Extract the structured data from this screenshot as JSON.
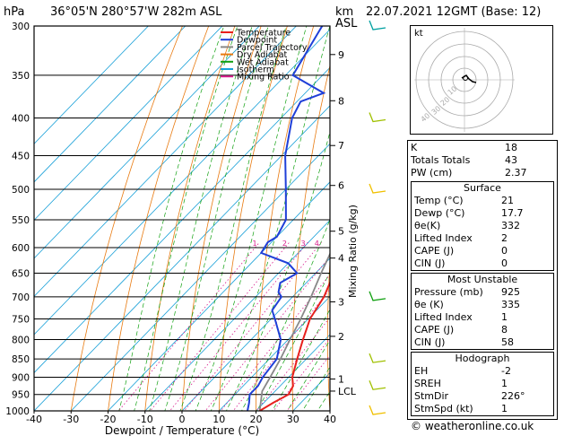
{
  "header": {
    "hpa_label": "hPa",
    "location": "36°05'N  280°57'W  282m  ASL",
    "km_label": "km",
    "asl_label": "ASL",
    "datetime": "22.07.2021  12GMT  (Base: 12)"
  },
  "legend": [
    {
      "label": "Temperature",
      "color": "#e8201c"
    },
    {
      "label": "Dewpoint",
      "color": "#1f3fd8"
    },
    {
      "label": "Parcel Trajectory",
      "color": "#888888"
    },
    {
      "label": "Dry Adiabat",
      "color": "#e87a10"
    },
    {
      "label": "Wet Adiabat",
      "color": "#10a010"
    },
    {
      "label": "Isotherm",
      "color": "#18a0d8"
    },
    {
      "label": "Mixing Ratio",
      "color": "#d81c8c"
    }
  ],
  "chart_data": {
    "type": "line",
    "title": "Skew-T log-P sounding",
    "xlabel": "Dewpoint / Temperature (°C)",
    "ylabel": "hPa",
    "xlim": [
      -40,
      40
    ],
    "ylim": [
      1000,
      300
    ],
    "x_ticks": [
      -40,
      -30,
      -20,
      -10,
      0,
      10,
      20,
      30,
      40
    ],
    "pressure_ticks": [
      300,
      350,
      400,
      450,
      500,
      550,
      600,
      650,
      700,
      750,
      800,
      850,
      900,
      950,
      1000
    ],
    "km_axis": [
      {
        "p": 328,
        "label": "9"
      },
      {
        "p": 379,
        "label": "8"
      },
      {
        "p": 436,
        "label": "7"
      },
      {
        "p": 494,
        "label": "6"
      },
      {
        "p": 570,
        "label": "5"
      },
      {
        "p": 620,
        "label": "4"
      },
      {
        "p": 711,
        "label": "3"
      },
      {
        "p": 792,
        "label": "2"
      },
      {
        "p": 905,
        "label": "1"
      },
      {
        "p": 940,
        "label": "LCL"
      }
    ],
    "mixing_ratio_axis_label": "Mixing Ratio (g/kg)",
    "mixing_ratio_labels": [
      "1",
      "2",
      "3",
      "4",
      "6",
      "8",
      "10",
      "15",
      "20",
      "25"
    ],
    "mixing_ratio_values": [
      1,
      2,
      3,
      4,
      6,
      8,
      10,
      15,
      20,
      25
    ],
    "mixing_ratio_label_pressure": 600,
    "series": [
      {
        "name": "Temperature",
        "color": "#e8201c",
        "points": [
          [
            1000,
            21
          ],
          [
            975,
            22.5
          ],
          [
            950,
            24.5
          ],
          [
            925,
            23.5
          ],
          [
            900,
            21
          ],
          [
            850,
            17.5
          ],
          [
            800,
            14
          ],
          [
            750,
            10.5
          ],
          [
            700,
            8.5
          ],
          [
            650,
            5
          ],
          [
            600,
            1
          ],
          [
            550,
            -3.5
          ],
          [
            500,
            -8
          ],
          [
            450,
            -11.5
          ],
          [
            400,
            -19
          ],
          [
            350,
            -28
          ],
          [
            300,
            -38
          ]
        ]
      },
      {
        "name": "Dewpoint",
        "color": "#1f3fd8",
        "points": [
          [
            1000,
            17.7
          ],
          [
            975,
            16
          ],
          [
            950,
            14
          ],
          [
            925,
            14
          ],
          [
            900,
            13
          ],
          [
            850,
            12
          ],
          [
            800,
            8
          ],
          [
            750,
            1
          ],
          [
            730,
            -2
          ],
          [
            700,
            -3
          ],
          [
            690,
            -5
          ],
          [
            670,
            -7
          ],
          [
            650,
            -5
          ],
          [
            630,
            -10
          ],
          [
            610,
            -20
          ],
          [
            590,
            -21
          ],
          [
            580,
            -20
          ],
          [
            550,
            -22
          ],
          [
            500,
            -30
          ],
          [
            450,
            -39
          ],
          [
            400,
            -47
          ],
          [
            380,
            -49
          ],
          [
            370,
            -45
          ],
          [
            350,
            -58
          ],
          [
            300,
            -63
          ]
        ]
      },
      {
        "name": "Parcel Trajectory",
        "color": "#888888",
        "points": [
          [
            1000,
            21
          ],
          [
            940,
            16.5
          ],
          [
            900,
            15
          ],
          [
            850,
            13
          ],
          [
            800,
            10.5
          ],
          [
            750,
            8
          ],
          [
            700,
            5
          ],
          [
            650,
            1.5
          ],
          [
            600,
            -2
          ],
          [
            550,
            -6
          ],
          [
            500,
            -11
          ],
          [
            450,
            -16
          ],
          [
            400,
            -22
          ],
          [
            350,
            -30
          ],
          [
            300,
            -40
          ]
        ]
      }
    ],
    "wind_barbs": [
      {
        "p": 300,
        "color": "#00a0a0"
      },
      {
        "p": 400,
        "color": "#a0c000"
      },
      {
        "p": 500,
        "color": "#f0c000"
      },
      {
        "p": 700,
        "color": "#10a010"
      },
      {
        "p": 850,
        "color": "#a0c000"
      },
      {
        "p": 925,
        "color": "#a0c000"
      },
      {
        "p": 1000,
        "color": "#f0c000"
      }
    ]
  },
  "hodograph": {
    "unit_label": "kt",
    "ring_labels": [
      "10",
      "20",
      "30",
      "40"
    ]
  },
  "indices": {
    "rows": [
      {
        "label": "K",
        "value": "18"
      },
      {
        "label": "Totals Totals",
        "value": "43"
      },
      {
        "label": "PW (cm)",
        "value": "2.37"
      }
    ]
  },
  "surface": {
    "title": "Surface",
    "rows": [
      {
        "label": "Temp (°C)",
        "value": "21"
      },
      {
        "label": "Dewp (°C)",
        "value": "17.7"
      },
      {
        "label": "θe(K)",
        "value": "332"
      },
      {
        "label": "Lifted Index",
        "value": "2"
      },
      {
        "label": "CAPE (J)",
        "value": "0"
      },
      {
        "label": "CIN (J)",
        "value": "0"
      }
    ]
  },
  "most_unstable": {
    "title": "Most Unstable",
    "rows": [
      {
        "label": "Pressure (mb)",
        "value": "925"
      },
      {
        "label": "θe (K)",
        "value": "335"
      },
      {
        "label": "Lifted Index",
        "value": "1"
      },
      {
        "label": "CAPE (J)",
        "value": "8"
      },
      {
        "label": "CIN (J)",
        "value": "58"
      }
    ]
  },
  "hodograph_table": {
    "title": "Hodograph",
    "rows": [
      {
        "label": "EH",
        "value": "-2"
      },
      {
        "label": "SREH",
        "value": "1"
      },
      {
        "label": "StmDir",
        "value": "226°"
      },
      {
        "label": "StmSpd (kt)",
        "value": "1"
      }
    ]
  },
  "footer": {
    "copyright": "© weatheronline.co.uk"
  }
}
